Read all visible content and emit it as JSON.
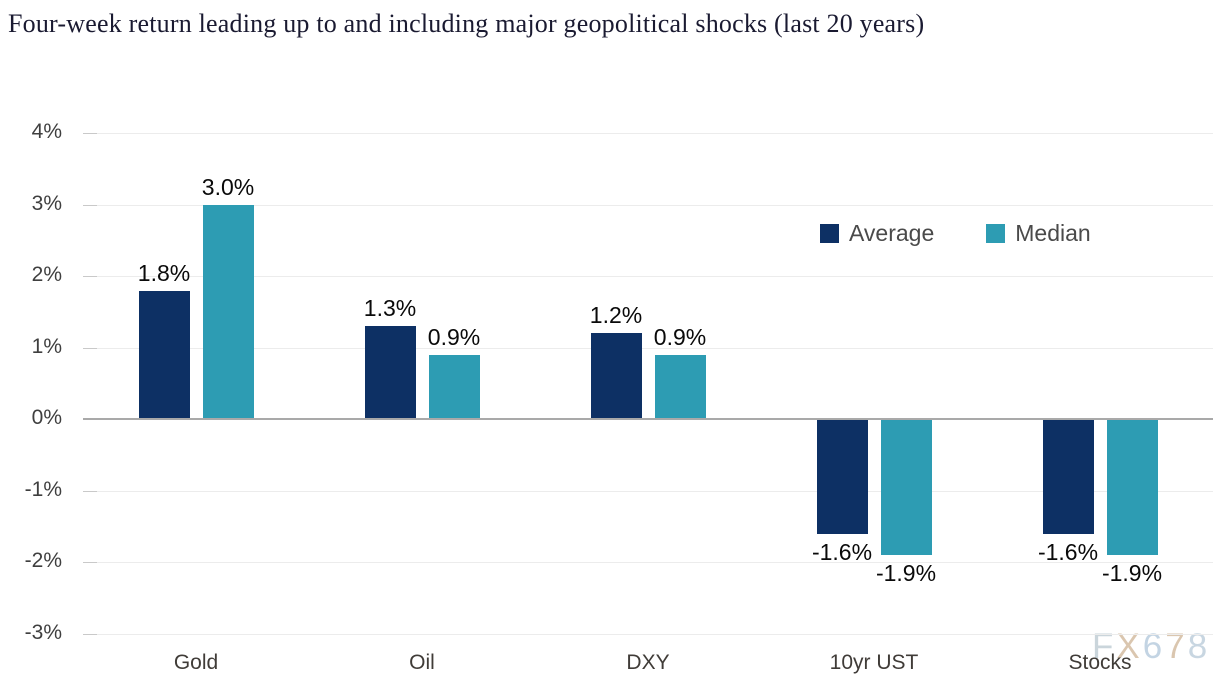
{
  "title": "Four-week return leading up to and including major geopolitical shocks (last 20 years)",
  "chart_data": {
    "type": "bar",
    "categories": [
      "Gold",
      "Oil",
      "DXY",
      "10yr UST",
      "Stocks"
    ],
    "series": [
      {
        "name": "Average",
        "color": "#0d3064",
        "values": [
          1.8,
          1.3,
          1.2,
          -1.6,
          -1.6
        ],
        "labels": [
          "1.8%",
          "1.3%",
          "1.2%",
          "-1.6%",
          "-1.6%"
        ]
      },
      {
        "name": "Median",
        "color": "#2d9cb3",
        "values": [
          3.0,
          0.9,
          0.9,
          -1.9,
          -1.9
        ],
        "labels": [
          "3.0%",
          "0.9%",
          "0.9%",
          "-1.9%",
          "-1.9%"
        ]
      }
    ],
    "ylim": [
      -3,
      4
    ],
    "ytick_step": 1,
    "ytick_labels": [
      "4%",
      "3%",
      "2%",
      "1%",
      "0%",
      "-1%",
      "-2%",
      "-3%"
    ],
    "grid": true,
    "legend_position": "upper-right"
  },
  "legend": {
    "average_label": "Average",
    "median_label": "Median"
  },
  "watermark": {
    "text": "FX678",
    "letter_colors": [
      "#c8d3da",
      "#d9c3ab",
      "#c0d2e2",
      "#d9c3ab",
      "#c6d4e0"
    ]
  }
}
